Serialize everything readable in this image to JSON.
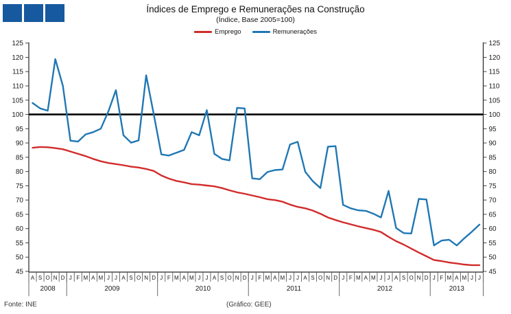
{
  "header": {
    "title": "Índices de Emprego e Remunerações na Construção",
    "subtitle": "(Índice, Base 2005=100)"
  },
  "logo": {
    "squares": 3,
    "color": "#17599e"
  },
  "legend": [
    {
      "label": "Emprego",
      "color": "#d22b2b"
    },
    {
      "label": "Remunerações",
      "color": "#1f77b4"
    }
  ],
  "footer": {
    "source": "Fonte: INE",
    "credit": "(Gráfico: GEE)"
  },
  "chart_data": {
    "type": "line",
    "title": "Índices de Emprego e Remunerações na Construção",
    "subtitle": "(Índice, Base 2005=100)",
    "ylim": [
      45,
      125
    ],
    "ytick_step": 5,
    "grid": false,
    "legend_position": "top",
    "y_axis_mirrored_right": true,
    "reference_line": {
      "value": 100,
      "color": "#000000"
    },
    "categories": [
      "A",
      "S",
      "O",
      "N",
      "D",
      "J",
      "F",
      "M",
      "A",
      "M",
      "J",
      "J",
      "A",
      "S",
      "O",
      "N",
      "D",
      "J",
      "F",
      "M",
      "A",
      "M",
      "J",
      "J",
      "A",
      "S",
      "O",
      "N",
      "D",
      "J",
      "F",
      "M",
      "A",
      "M",
      "J",
      "J",
      "A",
      "S",
      "O",
      "N",
      "D",
      "J",
      "F",
      "M",
      "A",
      "M",
      "J",
      "J",
      "A",
      "S",
      "O",
      "N",
      "D",
      "J",
      "F",
      "M",
      "A",
      "M",
      "J",
      "J"
    ],
    "years": [
      {
        "label": "2008",
        "months": 5
      },
      {
        "label": "2009",
        "months": 12
      },
      {
        "label": "2010",
        "months": 12
      },
      {
        "label": "2011",
        "months": 12
      },
      {
        "label": "2012",
        "months": 12
      },
      {
        "label": "2013",
        "months": 7
      }
    ],
    "series": [
      {
        "name": "Emprego",
        "color": "#d22b2b",
        "values": [
          88.3,
          88.6,
          88.5,
          88.2,
          87.8,
          87.0,
          86.2,
          85.4,
          84.4,
          83.6,
          83.0,
          82.6,
          82.2,
          81.7,
          81.4,
          80.9,
          80.2,
          78.6,
          77.5,
          76.7,
          76.2,
          75.6,
          75.4,
          75.1,
          74.8,
          74.2,
          73.4,
          72.7,
          72.2,
          71.6,
          71.0,
          70.3,
          70.0,
          69.4,
          68.4,
          67.6,
          67.1,
          66.3,
          65.2,
          63.9,
          63.0,
          62.2,
          61.5,
          60.8,
          60.2,
          59.6,
          58.8,
          57.1,
          55.6,
          54.4,
          53.0,
          51.6,
          50.3,
          49.0,
          48.6,
          48.1,
          47.8,
          47.4,
          47.2,
          47.2
        ]
      },
      {
        "name": "Remunerações",
        "color": "#1f77b4",
        "values": [
          104.0,
          102.1,
          101.3,
          119.4,
          110.0,
          90.8,
          90.5,
          93.0,
          93.8,
          95.0,
          101.0,
          108.5,
          92.7,
          90.1,
          90.9,
          113.7,
          100.0,
          86.0,
          85.6,
          86.6,
          87.6,
          93.8,
          92.7,
          101.5,
          86.2,
          84.4,
          83.9,
          102.3,
          102.1,
          77.6,
          77.3,
          79.8,
          80.5,
          80.7,
          89.5,
          90.4,
          79.9,
          76.6,
          74.2,
          88.7,
          88.9,
          68.3,
          67.1,
          66.4,
          66.2,
          65.2,
          63.9,
          73.2,
          60.2,
          58.4,
          58.3,
          70.4,
          70.2,
          54.1,
          55.8,
          56.1,
          54.1,
          56.6,
          58.9,
          61.4
        ]
      }
    ]
  }
}
